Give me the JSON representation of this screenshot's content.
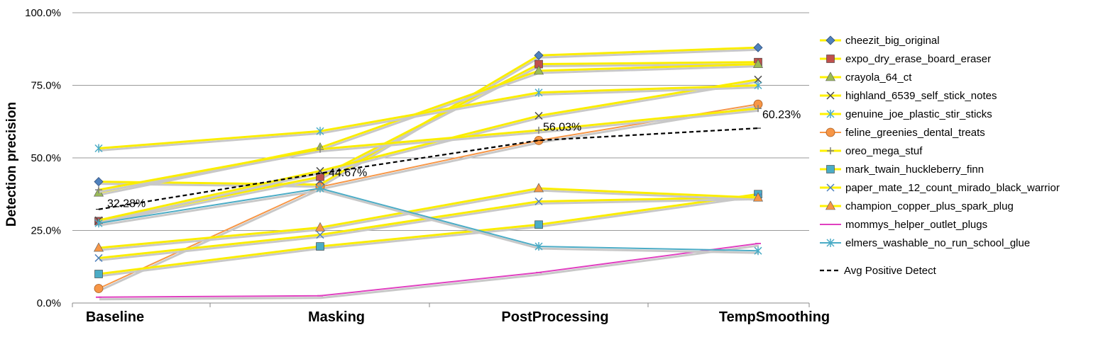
{
  "chart_data": {
    "type": "line",
    "ylabel": "Detection precision",
    "ylim": [
      0,
      100
    ],
    "yticks": [
      "0.0%",
      "25.0%",
      "50.0%",
      "75.0%",
      "100.0%"
    ],
    "categories": [
      "Baseline",
      "Masking",
      "PostProcessing",
      "TempSmoothing"
    ],
    "grid": true,
    "legend_position": "right",
    "series": [
      {
        "name": "cheezit_big_original",
        "values": [
          41.8,
          40.8,
          85.3,
          88.0
        ],
        "color": "#4F81BD",
        "marker": "diamond"
      },
      {
        "name": "expo_dry_erase_board_eraser",
        "values": [
          28.2,
          43.5,
          82.3,
          83.0
        ],
        "color": "#C0504D",
        "marker": "square"
      },
      {
        "name": "crayola_64_ct",
        "values": [
          38.0,
          53.5,
          80.0,
          82.3
        ],
        "color": "#9BBB59",
        "marker": "triangle"
      },
      {
        "name": "highland_6539_self_stick_notes",
        "values": [
          28.5,
          45.5,
          64.5,
          77.0
        ],
        "color": "#4d4d4d",
        "marker": "x"
      },
      {
        "name": "genuine_joe_plastic_stir_sticks",
        "values": [
          53.3,
          59.2,
          72.5,
          75.0
        ],
        "color": "#4BACC6",
        "marker": "star"
      },
      {
        "name": "feline_greenies_dental_treats",
        "values": [
          5.0,
          40.0,
          56.0,
          68.5
        ],
        "color": "#F79646",
        "marker": "circle"
      },
      {
        "name": "oreo_mega_stuf",
        "values": [
          39.0,
          53.0,
          59.5,
          67.0
        ],
        "color": "#7F7F7F",
        "marker": "plus"
      },
      {
        "name": "mark_twain_huckleberry_finn",
        "values": [
          10.0,
          19.5,
          27.0,
          37.5
        ],
        "color": "#4BACC6",
        "marker": "square"
      },
      {
        "name": "paper_mate_12_count_mirado_black_warrior",
        "values": [
          15.5,
          23.5,
          35.0,
          36.5
        ],
        "color": "#4F81BD",
        "marker": "x"
      },
      {
        "name": "champion_copper_plus_spark_plug",
        "values": [
          19.0,
          26.0,
          39.5,
          36.3
        ],
        "color": "#F79646",
        "marker": "triangle"
      },
      {
        "name": "mommys_helper_outlet_plugs",
        "values": [
          2.0,
          2.5,
          10.5,
          20.5
        ],
        "color": "#E040C0",
        "marker": "dash"
      },
      {
        "name": "elmers_washable_no_run_school_glue",
        "values": [
          27.5,
          39.5,
          19.5,
          18.0
        ],
        "color": "#4BACC6",
        "marker": "star"
      }
    ],
    "average": {
      "name": "Avg Positive Detect",
      "values": [
        32.28,
        44.67,
        56.03,
        60.23
      ],
      "labels": [
        "32.28%",
        "44.67%",
        "56.03%",
        "60.23%"
      ]
    }
  }
}
